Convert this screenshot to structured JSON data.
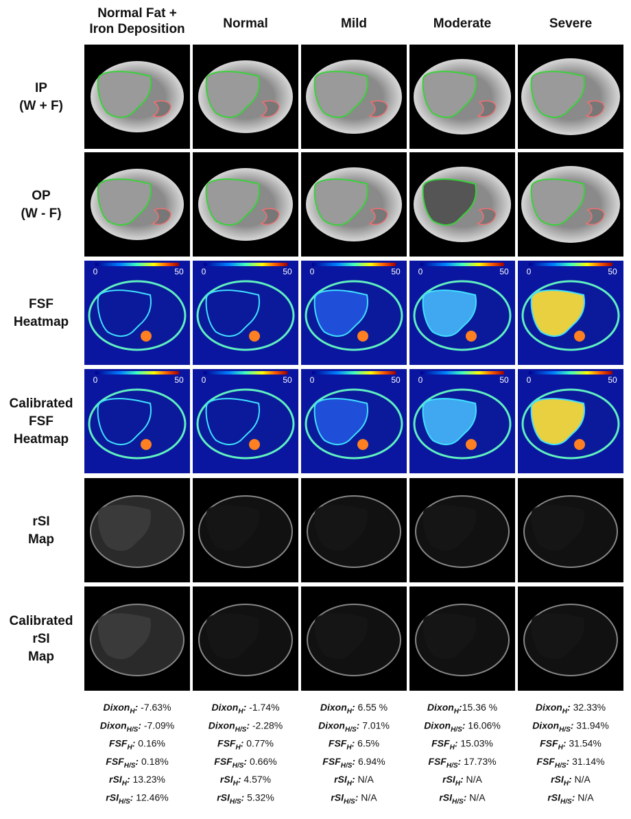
{
  "columns": [
    [
      "Normal Fat +",
      "Iron Deposition"
    ],
    [
      "Normal"
    ],
    [
      "Mild"
    ],
    [
      "Moderate"
    ],
    [
      "Severe"
    ]
  ],
  "rows": [
    [
      "IP",
      "(W + F)"
    ],
    [
      "OP",
      "(W - F)"
    ],
    [
      "FSF",
      "Heatmap"
    ],
    [
      "Calibrated",
      "FSF",
      "Heatmap"
    ],
    [
      "rSI",
      "Map"
    ],
    [
      "Calibrated",
      "rSI",
      "Map"
    ]
  ],
  "colorbar": {
    "min": 0,
    "max": 50
  },
  "separator": ":",
  "stats": [
    [
      {
        "name": "Dixon",
        "sub": "H",
        "value": " -7.63%"
      },
      {
        "name": "Dixon",
        "sub": "H/S",
        "value": " -7.09%"
      },
      {
        "name": "FSF",
        "sub": "H",
        "value": " 0.16%"
      },
      {
        "name": "FSF",
        "sub": "H/S",
        "value": " 0.18%"
      },
      {
        "name": "rSI",
        "sub": "H",
        "value": " 13.23%"
      },
      {
        "name": "rSI",
        "sub": "H/S",
        "value": " 12.46%"
      }
    ],
    [
      {
        "name": "Dixon",
        "sub": "H",
        "value": " -1.74%"
      },
      {
        "name": "Dixon",
        "sub": "H/S",
        "value": " -2.28%"
      },
      {
        "name": "FSF",
        "sub": "H",
        "value": " 0.77%"
      },
      {
        "name": "FSF",
        "sub": "H/S",
        "value": " 0.66%"
      },
      {
        "name": "rSI",
        "sub": "H",
        "value": " 4.57%"
      },
      {
        "name": "rSI",
        "sub": "H/S",
        "value": " 5.32%"
      }
    ],
    [
      {
        "name": "Dixon",
        "sub": "H",
        "value": " 6.55 %"
      },
      {
        "name": "Dixon",
        "sub": "H/S",
        "value": " 7.01%"
      },
      {
        "name": "FSF",
        "sub": "H",
        "value": " 6.5%"
      },
      {
        "name": "FSF",
        "sub": "H/S",
        "value": " 6.94%"
      },
      {
        "name": "rSI",
        "sub": "H",
        "value": " N/A"
      },
      {
        "name": "rSI",
        "sub": "H/S",
        "value": " N/A"
      }
    ],
    [
      {
        "name": "Dixon",
        "sub": "H",
        "value": "15.36 %"
      },
      {
        "name": "Dixon",
        "sub": "H/S",
        "value": " 16.06%"
      },
      {
        "name": "FSF",
        "sub": "H",
        "value": " 15.03%"
      },
      {
        "name": "FSF",
        "sub": "H/S",
        "value": " 17.73%"
      },
      {
        "name": "rSI",
        "sub": "H",
        "value": " N/A"
      },
      {
        "name": "rSI",
        "sub": "H/S",
        "value": " N/A"
      }
    ],
    [
      {
        "name": "Dixon",
        "sub": "H",
        "value": " 32.33%"
      },
      {
        "name": "Dixon",
        "sub": "H/S",
        "value": " 31.94%"
      },
      {
        "name": "FSF",
        "sub": "H",
        "value": " 31.54%"
      },
      {
        "name": "FSF",
        "sub": "H/S",
        "value": " 31.14%"
      },
      {
        "name": "rSI",
        "sub": "H",
        "value": " N/A"
      },
      {
        "name": "rSI",
        "sub": "H/S",
        "value": " N/A"
      }
    ]
  ]
}
